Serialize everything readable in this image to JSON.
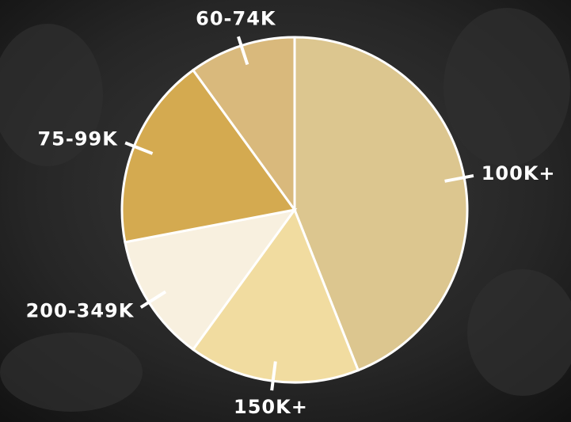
{
  "chart_data": {
    "type": "pie",
    "categories": [
      "100K+",
      "150K+",
      "200-349K",
      "75-99K",
      "60-74K"
    ],
    "values": [
      44,
      16,
      12,
      18,
      10
    ],
    "colors": [
      "#dcc68f",
      "#f1dca0",
      "#f8f0df",
      "#d4aa50",
      "#d9b97c"
    ]
  }
}
